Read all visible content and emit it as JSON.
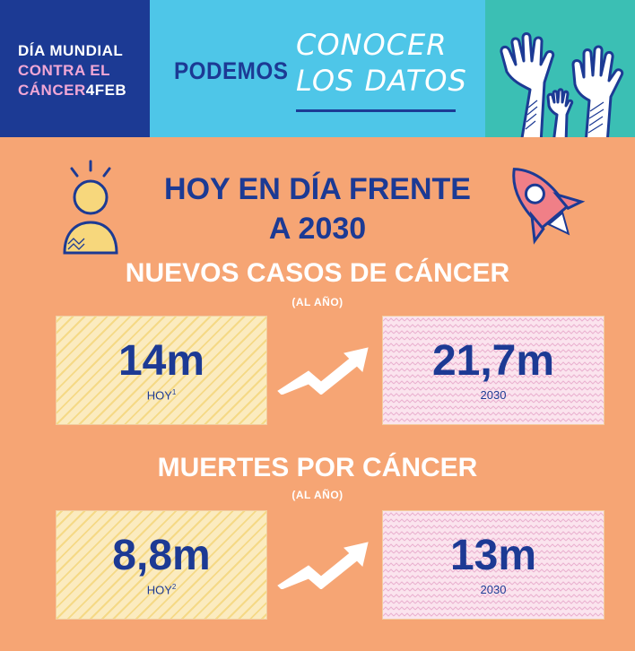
{
  "header": {
    "brand": {
      "line1": "DÍA MUNDIAL",
      "line2": "CONTRA EL",
      "line3_a": "CÁNCER",
      "line3_b": "4FEB"
    },
    "podemos": "PODEMOS",
    "script_line1": "CONOCER",
    "script_line2": "LOS DATOS"
  },
  "title": {
    "line1": "HOY EN DÍA FRENTE",
    "line2": "A 2030"
  },
  "sections": [
    {
      "heading": "NUEVOS CASOS DE CÁNCER",
      "sub": "(AL AÑO)",
      "today_value": "14m",
      "today_label": "HOY",
      "today_note": "1",
      "future_value": "21,7m",
      "future_label": "2030"
    },
    {
      "heading": "MUERTES POR CÁNCER",
      "sub": "(AL AÑO)",
      "today_value": "8,8m",
      "today_label": "HOY",
      "today_note": "2",
      "future_value": "13m",
      "future_label": "2030"
    }
  ],
  "colors": {
    "navy": "#1c3a94",
    "orange_bg": "#f6a574",
    "sky": "#4ec6e8",
    "teal": "#3bbfb4",
    "pink": "#f1a7d5"
  },
  "icons": [
    "raised-hands-icon",
    "person-icon",
    "rocket-icon",
    "rising-arrow-icon"
  ]
}
